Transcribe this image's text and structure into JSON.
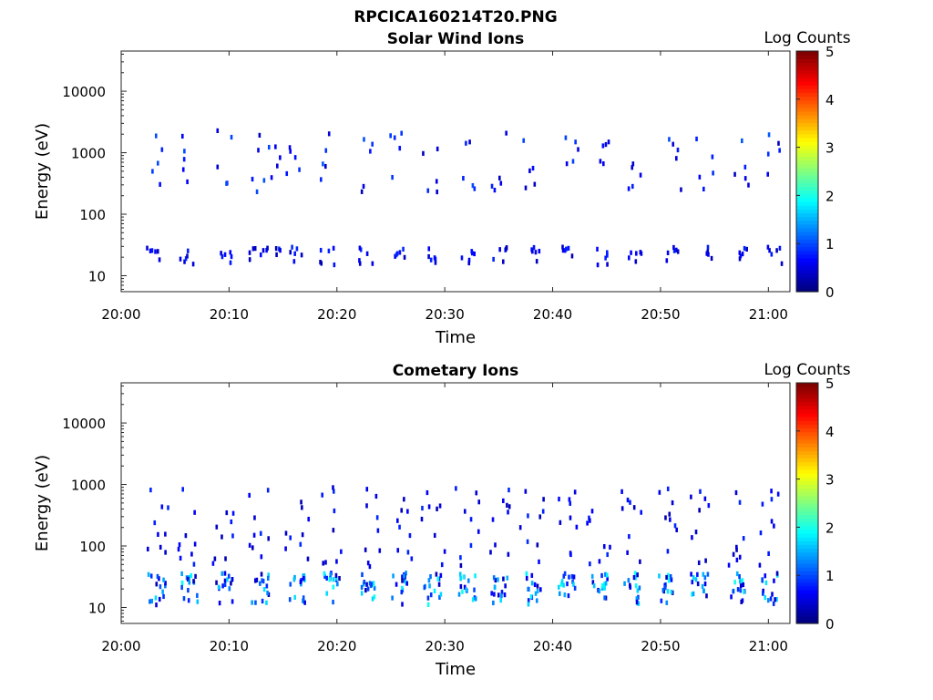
{
  "figure": {
    "title": "RPCICA160214T20.PNG"
  },
  "chart_data": [
    {
      "type": "heatmap",
      "title": "Solar Wind Ions",
      "xlabel": "Time",
      "ylabel": "Energy (eV)",
      "y_scale": "log",
      "ylim": [
        5.5,
        45000
      ],
      "xlim": [
        "20:00",
        "21:02"
      ],
      "x_ticks": [
        "20:00",
        "20:10",
        "20:20",
        "20:30",
        "20:40",
        "20:50",
        "21:00"
      ],
      "y_ticks": [
        "10",
        "100",
        "1000",
        "10000"
      ],
      "colorbar": {
        "label": "Log Counts",
        "min": 0,
        "max": 5,
        "ticks": [
          "0",
          "1",
          "2",
          "3",
          "4",
          "5"
        ],
        "colormap": "jet"
      },
      "grid": false
    },
    {
      "type": "heatmap",
      "title": "Cometary Ions",
      "xlabel": "Time",
      "ylabel": "Energy (eV)",
      "y_scale": "log",
      "ylim": [
        5.5,
        45000
      ],
      "xlim": [
        "20:00",
        "21:02"
      ],
      "x_ticks": [
        "20:00",
        "20:10",
        "20:20",
        "20:30",
        "20:40",
        "20:50",
        "21:00"
      ],
      "y_ticks": [
        "10",
        "100",
        "1000",
        "10000"
      ],
      "colorbar": {
        "label": "Log Counts",
        "min": 0,
        "max": 5,
        "ticks": [
          "0",
          "1",
          "2",
          "3",
          "4",
          "5"
        ],
        "colormap": "jet"
      },
      "grid": false
    }
  ]
}
